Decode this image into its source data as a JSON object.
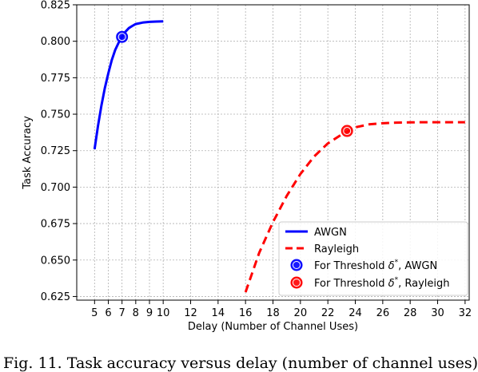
{
  "caption": "Fig. 11. Task accuracy versus delay (number of channel uses)",
  "chart_data": {
    "type": "line",
    "xlabel": "Delay (Number of Channel Uses)",
    "ylabel": "Task Accuracy",
    "xlim": [
      3.7,
      32.3
    ],
    "ylim": [
      0.6225,
      0.825
    ],
    "xticks": [
      5,
      6,
      7,
      8,
      9,
      10,
      12,
      14,
      16,
      18,
      20,
      22,
      24,
      26,
      28,
      30,
      32
    ],
    "yticks": [
      0.625,
      0.65,
      0.675,
      0.7,
      0.725,
      0.75,
      0.775,
      0.8,
      0.825
    ],
    "ytick_labels": [
      "0.625",
      "0.650",
      "0.675",
      "0.700",
      "0.725",
      "0.750",
      "0.775",
      "0.800",
      "0.825"
    ],
    "grid": true,
    "legend_position": "lower-right",
    "series": [
      {
        "name": "AWGN",
        "color": "#0000ff",
        "style": "solid",
        "x": [
          5.0,
          5.25,
          5.5,
          5.75,
          6.0,
          6.25,
          6.5,
          6.75,
          7.0,
          7.25,
          7.5,
          7.75,
          8.0,
          8.5,
          9.0,
          9.5,
          10.0
        ],
        "y": [
          0.726,
          0.742,
          0.756,
          0.768,
          0.778,
          0.787,
          0.794,
          0.799,
          0.803,
          0.8065,
          0.809,
          0.8105,
          0.8118,
          0.8128,
          0.8133,
          0.8135,
          0.8136
        ]
      },
      {
        "name": "Rayleigh",
        "color": "#ff0000",
        "style": "dashed",
        "x": [
          16.0,
          17.0,
          18.0,
          19.0,
          20.0,
          21.0,
          22.0,
          23.0,
          23.4,
          24.0,
          25.0,
          26.0,
          27.0,
          28.0,
          29.0,
          30.0,
          31.0,
          32.0
        ],
        "y": [
          0.628,
          0.655,
          0.676,
          0.694,
          0.709,
          0.721,
          0.73,
          0.736,
          0.738,
          0.741,
          0.743,
          0.7438,
          0.7442,
          0.7444,
          0.7445,
          0.7445,
          0.7445,
          0.7445
        ]
      }
    ],
    "markers": [
      {
        "name": "For Threshold δ*, AWGN",
        "color": "#0000ff",
        "x": 7.0,
        "y": 0.803
      },
      {
        "name": "For Threshold δ*, Rayleigh",
        "color": "#ff0000",
        "x": 23.4,
        "y": 0.7385
      }
    ],
    "legend": {
      "line_awgn": "AWGN",
      "line_rayleigh": "Rayleigh",
      "marker_awgn_prefix": "For Threshold ",
      "marker_awgn_suffix": ", AWGN",
      "marker_rayleigh_prefix": "For Threshold ",
      "marker_rayleigh_suffix": ", Rayleigh",
      "delta_symbol": "δ",
      "star": "*"
    }
  }
}
